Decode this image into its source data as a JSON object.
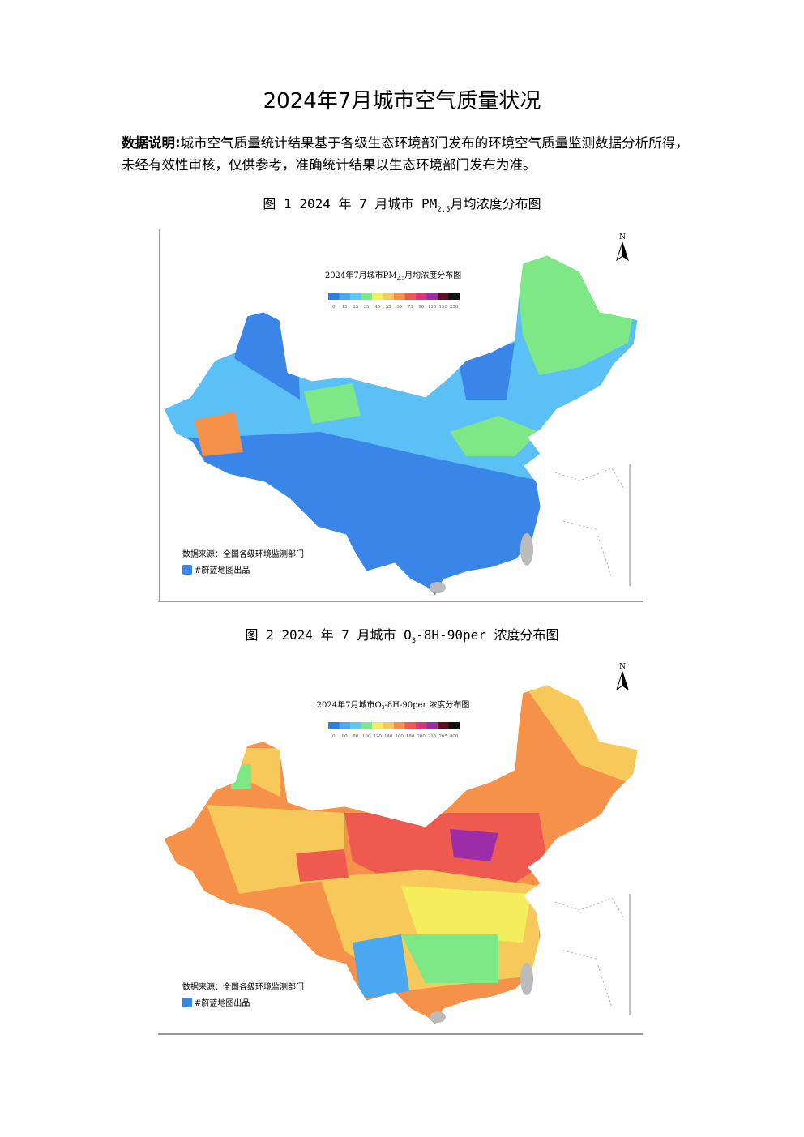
{
  "header": {
    "title": "2024年7月城市空气质量状况"
  },
  "description": {
    "label": "数据说明:",
    "text": "城市空气质量统计结果基于各级生态环境部门发布的环境空气质量监测数据分析所得，未经有效性审核，仅供参考，准确统计结果以生态环境部门发布为准。"
  },
  "figures": [
    {
      "caption": {
        "prefix": "图 1 2024 年 7 月城市 PM",
        "sub": "2.5",
        "suffix": "月均浓度分布图"
      },
      "map_title": {
        "prefix": "2024年7月城市PM",
        "sub": "2.5",
        "suffix": "月均浓度分布图"
      },
      "legend": [
        "0",
        "15",
        "25",
        "35",
        "45",
        "55",
        "65",
        "75",
        "90",
        "115",
        "150",
        "250"
      ],
      "north": "N",
      "source": "数据来源：全国各级环境监测部门",
      "credit": "#蔚蓝地图出品"
    },
    {
      "caption": {
        "prefix": "图 2 2024 年 7 月城市 O",
        "sub": "3",
        "suffix": "-8H-90per 浓度分布图"
      },
      "map_title": {
        "prefix": "2024年7月城市O",
        "sub": "3",
        "suffix": "-8H-90per 浓度分布图"
      },
      "legend": [
        "0",
        "60",
        "80",
        "100",
        "120",
        "140",
        "160",
        "180",
        "200",
        "215",
        "265",
        "800"
      ],
      "north": "N",
      "source": "数据来源：全国各级环境监测部门",
      "credit": "#蔚蓝地图出品"
    }
  ]
}
